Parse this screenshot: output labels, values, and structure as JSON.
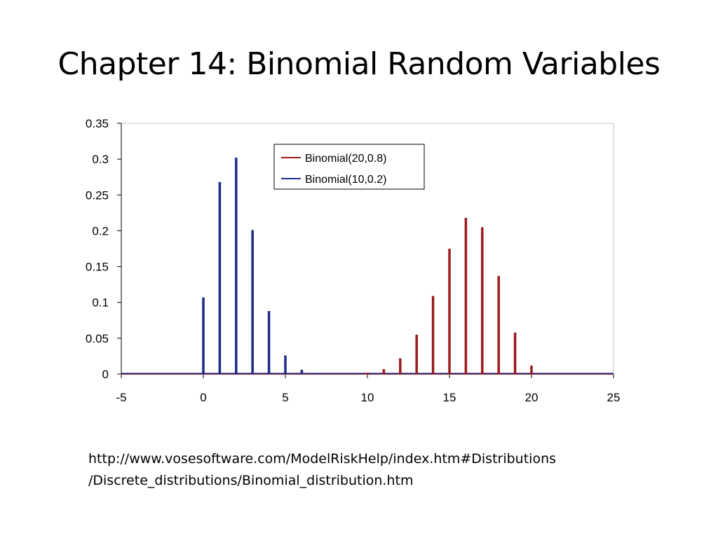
{
  "slide": {
    "title": "Chapter 14: Binomial Random Variables",
    "source_lines": [
      "http://www.vosesoftware.com/ModelRiskHelp/index.htm#Distributions",
      "/Discrete_distributions/Binomial_distribution.htm"
    ]
  },
  "chart_data": {
    "type": "bar",
    "title": "",
    "xlabel": "",
    "ylabel": "",
    "xlim": [
      -5,
      25
    ],
    "ylim": [
      0,
      0.35
    ],
    "x_ticks": [
      -5,
      0,
      5,
      10,
      15,
      20,
      25
    ],
    "x_tick_labels": [
      "-5",
      "0",
      "5",
      "10",
      "15",
      "20",
      "25"
    ],
    "y_ticks": [
      0,
      0.05,
      0.1,
      0.15,
      0.2,
      0.25,
      0.3,
      0.35
    ],
    "y_tick_labels": [
      "0",
      "0.05",
      "0.1",
      "0.15",
      "0.2",
      "0.25",
      "0.3",
      "0.35"
    ],
    "grid": false,
    "legend_position": "top-center",
    "series": [
      {
        "name": "Binomial(20,0.8)",
        "color": "#9b1b1b",
        "x": [
          10,
          11,
          12,
          13,
          14,
          15,
          16,
          17,
          18,
          19,
          20
        ],
        "values": [
          0.002,
          0.007,
          0.022,
          0.055,
          0.109,
          0.175,
          0.218,
          0.205,
          0.137,
          0.058,
          0.012
        ]
      },
      {
        "name": "Binomial(10,0.2)",
        "color": "#1c2a8c",
        "x": [
          0,
          1,
          2,
          3,
          4,
          5,
          6,
          7
        ],
        "values": [
          0.107,
          0.268,
          0.302,
          0.201,
          0.088,
          0.026,
          0.006,
          0.001
        ]
      }
    ]
  }
}
